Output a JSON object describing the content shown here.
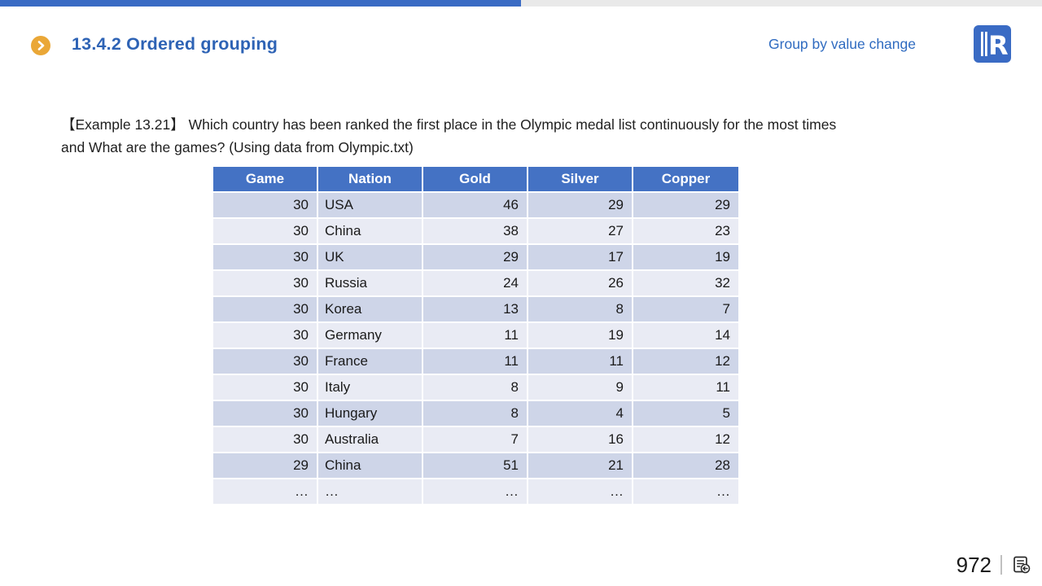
{
  "top_bar": {
    "progress_color": "#3a6bc4",
    "track_color": "#e9e9e9"
  },
  "header": {
    "title": "13.4.2 Ordered grouping",
    "subtitle": "Group by value change",
    "bullet_icon": "chevron-right-circle-icon",
    "logo_icon": "raqsoft-r-logo",
    "title_color": "#2e63b5",
    "subtitle_color": "#2f6bc0",
    "bullet_color": "#eaa737",
    "logo_color": "#3a6bc4"
  },
  "example": {
    "lines": [
      "【Example 13.21】 Which country has been ranked the first place in the Olympic medal list continuously for the most times",
      "and What are the games? (Using data from Olympic.txt)"
    ]
  },
  "table": {
    "columns": [
      "Game",
      "Nation",
      "Gold",
      "Silver",
      "Copper"
    ],
    "rows": [
      [
        "30",
        "USA",
        "46",
        "29",
        "29"
      ],
      [
        "30",
        "China",
        "38",
        "27",
        "23"
      ],
      [
        "30",
        "UK",
        "29",
        "17",
        "19"
      ],
      [
        "30",
        "Russia",
        "24",
        "26",
        "32"
      ],
      [
        "30",
        "Korea",
        "13",
        "8",
        "7"
      ],
      [
        "30",
        "Germany",
        "11",
        "19",
        "14"
      ],
      [
        "30",
        "France",
        "11",
        "11",
        "12"
      ],
      [
        "30",
        "Italy",
        "8",
        "9",
        "11"
      ],
      [
        "30",
        "Hungary",
        "8",
        "4",
        "5"
      ],
      [
        "30",
        "Australia",
        "7",
        "16",
        "12"
      ],
      [
        "29",
        "China",
        "51",
        "21",
        "28"
      ],
      [
        "…",
        "…",
        "…",
        "…",
        "…"
      ]
    ],
    "header_bg": "#4472c4",
    "row_odd_bg": "#ced5e8",
    "row_even_bg": "#e9ebf4"
  },
  "footer": {
    "page_number": "972",
    "icon": "document-return-icon"
  }
}
